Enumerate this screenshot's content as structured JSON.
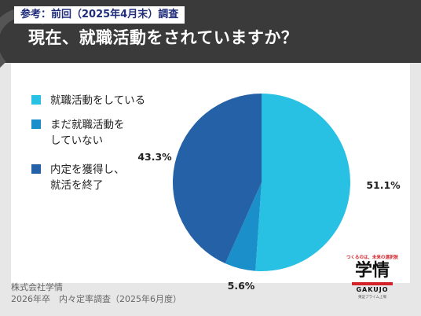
{
  "header": {
    "tag": "参考：前回（2025年4月末）調査",
    "title": "現在、就職活動をされていますか？"
  },
  "chart_data": {
    "type": "pie",
    "title": "現在、就職活動をされていますか？",
    "categories": [
      "就職活動をしている",
      "まだ就職活動を\nしていない",
      "内定を獲得し、\n就活を終了"
    ],
    "values": [
      51.1,
      5.6,
      43.3
    ],
    "value_labels": [
      "51.1%",
      "5.6%",
      "43.3%"
    ],
    "colors": [
      "#29c1e3",
      "#1a8fc9",
      "#2561a6"
    ],
    "legend_placement": "left",
    "start": "top, clockwise"
  },
  "footer": {
    "source_line1": "株式会社学情",
    "source_line2": "2026年卒　内々定率調査（2025年6月度）"
  },
  "logo": {
    "tagline": "つくるのは、未来の選択肢",
    "main": "学情",
    "sub": "GAKUJO",
    "sub2": "東証プライム上場"
  }
}
